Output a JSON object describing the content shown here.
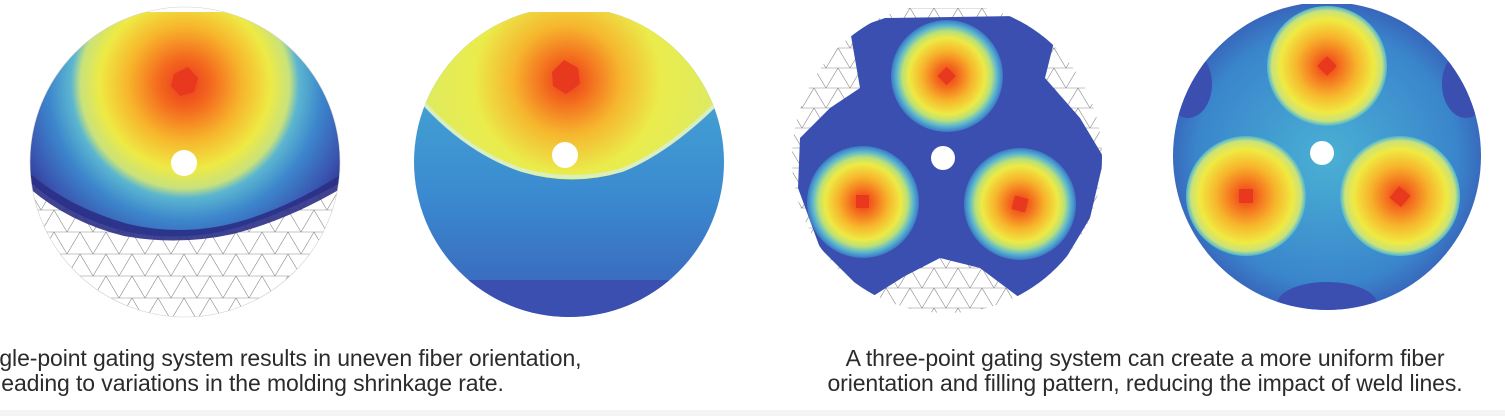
{
  "captions": {
    "single_point": {
      "line1": "A single-point gating system results in uneven fiber orientation,",
      "line2": "leading to variations in the molding shrinkage rate."
    },
    "three_point": {
      "line1": "A three-point gating system can create a more uniform fiber",
      "line2": "orientation and filling pattern, reducing the impact of weld lines."
    }
  },
  "colors": {
    "gate_red": "#e8381e",
    "hot_orange": "#f57d1c",
    "warm_yellow": "#f3e83a",
    "light_green": "#b8e07a",
    "teal": "#3aa8c8",
    "mid_blue": "#3a78c4",
    "deep_blue": "#2e3f9a",
    "mesh_gray": "#8a8a8a"
  }
}
